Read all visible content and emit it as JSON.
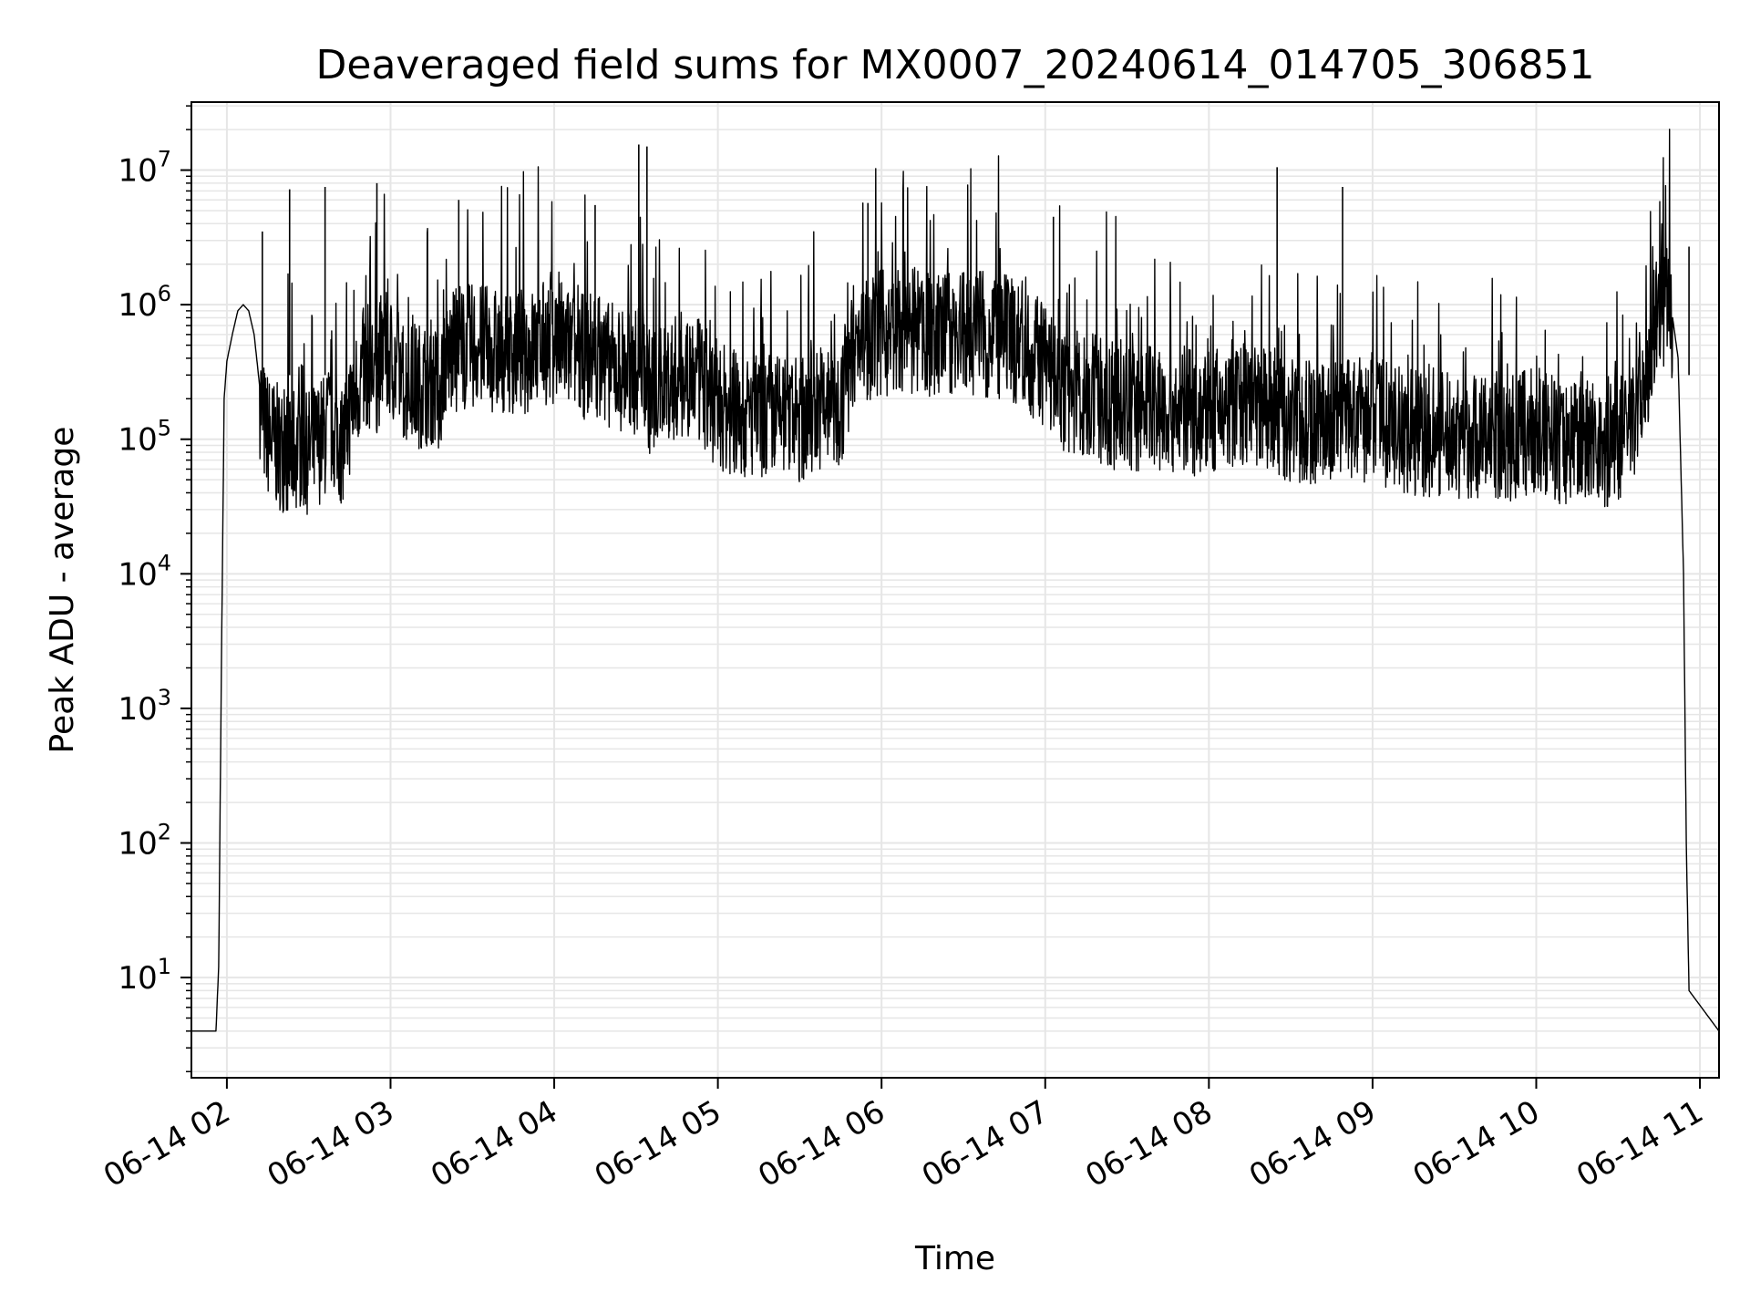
{
  "chart_data": {
    "type": "line",
    "title": "Deaveraged field sums for MX0007_20240614_014705_306851",
    "xlabel": "Time",
    "ylabel": "Peak ADU - average",
    "xscale": "date",
    "yscale": "log",
    "grid": true,
    "line_color": "#000000",
    "grid_color": "#e6e6e6",
    "xlim": [
      "2024-06-14 01:47",
      "2024-06-14 11:07"
    ],
    "ylim": [
      1.8,
      32000000
    ],
    "x_ticks": [
      {
        "value": "2024-06-14 02:00",
        "label": "06-14 02"
      },
      {
        "value": "2024-06-14 03:00",
        "label": "06-14 03"
      },
      {
        "value": "2024-06-14 04:00",
        "label": "06-14 04"
      },
      {
        "value": "2024-06-14 05:00",
        "label": "06-14 05"
      },
      {
        "value": "2024-06-14 06:00",
        "label": "06-14 06"
      },
      {
        "value": "2024-06-14 07:00",
        "label": "06-14 07"
      },
      {
        "value": "2024-06-14 08:00",
        "label": "06-14 08"
      },
      {
        "value": "2024-06-14 09:00",
        "label": "06-14 09"
      },
      {
        "value": "2024-06-14 10:00",
        "label": "06-14 10"
      },
      {
        "value": "2024-06-14 11:00",
        "label": "06-14 11"
      }
    ],
    "y_ticks": [
      {
        "value": 10,
        "base": "10",
        "exp": "1"
      },
      {
        "value": 100,
        "base": "10",
        "exp": "2"
      },
      {
        "value": 1000,
        "base": "10",
        "exp": "3"
      },
      {
        "value": 10000,
        "base": "10",
        "exp": "4"
      },
      {
        "value": 100000,
        "base": "10",
        "exp": "5"
      },
      {
        "value": 1000000,
        "base": "10",
        "exp": "6"
      },
      {
        "value": 10000000,
        "base": "10",
        "exp": "7"
      }
    ],
    "series": [
      {
        "x": [
          "2024-06-14 01:47",
          "2024-06-14 01:56",
          "2024-06-14 01:57",
          "2024-06-14 01:58",
          "2024-06-14 01:59",
          "2024-06-14 02:00",
          "2024-06-14 02:02",
          "2024-06-14 02:04",
          "2024-06-14 02:06",
          "2024-06-14 02:08",
          "2024-06-14 02:10",
          "2024-06-14 02:12",
          "2024-06-14 02:14",
          "2024-06-14 02:18",
          "2024-06-14 02:23",
          "2024-06-14 02:26",
          "2024-06-14 02:30",
          "2024-06-14 02:36",
          "2024-06-14 02:38",
          "2024-06-14 02:42",
          "2024-06-14 02:47",
          "2024-06-14 02:51",
          "2024-06-14 02:55",
          "2024-06-14 02:57",
          "2024-06-14 03:00",
          "2024-06-14 03:05",
          "2024-06-14 03:10",
          "2024-06-14 03:15",
          "2024-06-14 03:18",
          "2024-06-14 03:20",
          "2024-06-14 03:30",
          "2024-06-14 03:40",
          "2024-06-14 03:50",
          "2024-06-14 04:00",
          "2024-06-14 04:10",
          "2024-06-14 04:15",
          "2024-06-14 04:20",
          "2024-06-14 04:30",
          "2024-06-14 04:32",
          "2024-06-14 04:35",
          "2024-06-14 04:40",
          "2024-06-14 04:50",
          "2024-06-14 05:00",
          "2024-06-14 05:10",
          "2024-06-14 05:20",
          "2024-06-14 05:30",
          "2024-06-14 05:37",
          "2024-06-14 05:45",
          "2024-06-14 05:50",
          "2024-06-14 06:00",
          "2024-06-14 06:10",
          "2024-06-14 06:20",
          "2024-06-14 06:30",
          "2024-06-14 06:40",
          "2024-06-14 06:50",
          "2024-06-14 07:00",
          "2024-06-14 07:05",
          "2024-06-14 07:10",
          "2024-06-14 07:20",
          "2024-06-14 07:30",
          "2024-06-14 07:40",
          "2024-06-14 07:50",
          "2024-06-14 08:00",
          "2024-06-14 08:10",
          "2024-06-14 08:20",
          "2024-06-14 08:25",
          "2024-06-14 08:30",
          "2024-06-14 08:40",
          "2024-06-14 08:49",
          "2024-06-14 08:55",
          "2024-06-14 09:00",
          "2024-06-14 09:10",
          "2024-06-14 09:20",
          "2024-06-14 09:30",
          "2024-06-14 09:40",
          "2024-06-14 09:50",
          "2024-06-14 10:00",
          "2024-06-14 10:10",
          "2024-06-14 10:15",
          "2024-06-14 10:20",
          "2024-06-14 10:25",
          "2024-06-14 10:30",
          "2024-06-14 10:35",
          "2024-06-14 10:42",
          "2024-06-14 10:44",
          "2024-06-14 10:46",
          "2024-06-14 10:48",
          "2024-06-14 10:50",
          "2024-06-14 10:52",
          "2024-06-14 10:54",
          "2024-06-14 10:55",
          "2024-06-14 10:56",
          "2024-06-14 11:07"
        ],
        "y": [
          4,
          4,
          12,
          2000,
          200000,
          380000,
          600000,
          900000,
          1000000,
          900000,
          600000,
          250000,
          130000,
          100000,
          90000,
          100000,
          90000,
          120000,
          150000,
          100000,
          250000,
          400000,
          350000,
          500000,
          450000,
          300000,
          280000,
          300000,
          250000,
          450000,
          550000,
          500000,
          500000,
          620000,
          450000,
          500000,
          400000,
          350000,
          500000,
          250000,
          300000,
          350000,
          200000,
          160000,
          170000,
          150000,
          200000,
          180000,
          600000,
          700000,
          700000,
          650000,
          700000,
          650000,
          600000,
          400000,
          280000,
          250000,
          220000,
          180000,
          200000,
          180000,
          170000,
          200000,
          180000,
          160000,
          160000,
          150000,
          180000,
          150000,
          160000,
          130000,
          120000,
          120000,
          120000,
          110000,
          130000,
          100000,
          130000,
          120000,
          100000,
          110000,
          130000,
          550000,
          800000,
          1000000,
          950000,
          800000,
          400000,
          10000,
          100,
          8,
          4
        ],
        "spikes": [
          {
            "x": "2024-06-14 02:13",
            "y": 3500000
          },
          {
            "x": "2024-06-14 02:23",
            "y": 7200000
          },
          {
            "x": "2024-06-14 02:36",
            "y": 7500000
          },
          {
            "x": "2024-06-14 02:55",
            "y": 8000000
          },
          {
            "x": "2024-06-14 03:25",
            "y": 6000000
          },
          {
            "x": "2024-06-14 04:15",
            "y": 5500000
          },
          {
            "x": "2024-06-14 04:31",
            "y": 15500000
          },
          {
            "x": "2024-06-14 04:34",
            "y": 15000000
          },
          {
            "x": "2024-06-14 05:55",
            "y": 5700000
          },
          {
            "x": "2024-06-14 07:03",
            "y": 4500000
          },
          {
            "x": "2024-06-14 08:25",
            "y": 10500000
          },
          {
            "x": "2024-06-14 08:49",
            "y": 7500000
          },
          {
            "x": "2024-06-14 10:56",
            "y": 2700000
          }
        ]
      }
    ]
  }
}
